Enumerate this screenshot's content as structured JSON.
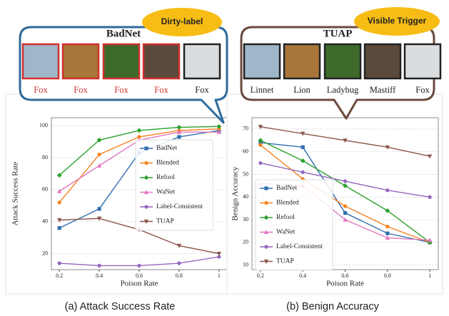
{
  "chart_data": [
    {
      "type": "line",
      "caption": "(a) Attack Success Rate",
      "x_label": "Poison Rate",
      "y_label": "Attack Success Rate",
      "x": [
        0.2,
        0.4,
        0.6,
        0.8,
        1.0
      ],
      "xlim": [
        0.16,
        1.04
      ],
      "xticks": [
        0.2,
        0.4,
        0.6,
        0.8,
        1.0
      ],
      "ylim": [
        10,
        105
      ],
      "yticks": [
        20,
        40,
        60,
        80,
        100
      ],
      "grid": true,
      "legend": "center right",
      "series": [
        {
          "name": "BadNet",
          "color": "#2f6fb0",
          "marker": "square",
          "values": [
            36,
            48,
            83,
            93,
            97
          ]
        },
        {
          "name": "Blended",
          "color": "#f5821f",
          "marker": "circle",
          "values": [
            52,
            82,
            93,
            97,
            98
          ]
        },
        {
          "name": "Refool",
          "color": "#2ca02c",
          "marker": "diamond",
          "values": [
            69,
            91,
            97,
            99,
            99.5
          ]
        },
        {
          "name": "WaNet",
          "color": "#e377c2",
          "marker": "triangle-up",
          "values": [
            59,
            75,
            91,
            96,
            96
          ]
        },
        {
          "name": "Label-Consistent",
          "color": "#9467bd",
          "marker": "circle",
          "values": [
            14,
            12.5,
            12.5,
            14,
            18
          ]
        },
        {
          "name": "TUAP",
          "color": "#8c564b",
          "marker": "triangle-down",
          "values": [
            41,
            42,
            35,
            25,
            20
          ]
        }
      ],
      "callout": {
        "title": "BadNet",
        "tag": "Dirty-label",
        "border": "#2e6a9a",
        "items": [
          {
            "label": "Fox",
            "color": "#d0312d"
          },
          {
            "label": "Fox",
            "color": "#d0312d"
          },
          {
            "label": "Fox",
            "color": "#d0312d"
          },
          {
            "label": "Fox",
            "color": "#d0312d"
          },
          {
            "label": "Fox",
            "color": "#222222"
          }
        ]
      }
    },
    {
      "type": "line",
      "caption": "(b) Benign Accuracy",
      "x_label": "Poison Rate",
      "y_label": "Benign Accuracy",
      "x": [
        0.2,
        0.4,
        0.6,
        0.8,
        1.0
      ],
      "xlim": [
        0.16,
        1.04
      ],
      "xticks": [
        0.2,
        0.4,
        0.6,
        0.8,
        1.0
      ],
      "ylim": [
        8,
        75
      ],
      "yticks": [
        10,
        20,
        30,
        40,
        50,
        60,
        70
      ],
      "grid": true,
      "legend": "lower left",
      "series": [
        {
          "name": "BadNet",
          "color": "#2f6fb0",
          "marker": "square",
          "values": [
            64,
            62,
            33,
            24,
            20
          ]
        },
        {
          "name": "Blended",
          "color": "#f5821f",
          "marker": "circle",
          "values": [
            63,
            48,
            36,
            27,
            20
          ]
        },
        {
          "name": "Refool",
          "color": "#2ca02c",
          "marker": "diamond",
          "values": [
            65,
            56,
            45,
            34,
            20
          ]
        },
        {
          "name": "WaNet",
          "color": "#e377c2",
          "marker": "triangle-up",
          "values": [
            46,
            45,
            30,
            22,
            21
          ]
        },
        {
          "name": "Label-Consistent",
          "color": "#9467bd",
          "marker": "circle",
          "values": [
            55,
            51,
            47,
            43,
            40
          ]
        },
        {
          "name": "TUAP",
          "color": "#8c564b",
          "marker": "triangle-down",
          "values": [
            71,
            68,
            65,
            62,
            58
          ]
        }
      ],
      "callout": {
        "title": "TUAP",
        "tag": "Visible Trigger",
        "border": "#6b4a3e",
        "items": [
          {
            "label": "Linnet",
            "color": "#222222"
          },
          {
            "label": "Lion",
            "color": "#222222"
          },
          {
            "label": "Ladybug",
            "color": "#222222"
          },
          {
            "label": "Mastiff",
            "color": "#222222"
          },
          {
            "label": "Fox",
            "color": "#222222"
          }
        ]
      }
    }
  ]
}
